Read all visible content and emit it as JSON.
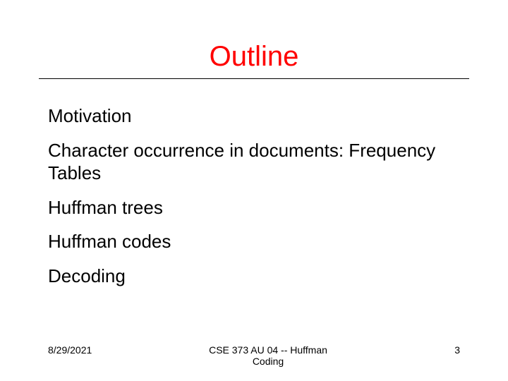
{
  "slide": {
    "title": "Outline",
    "title_color": "#ff0000",
    "title_fontsize": 40,
    "rule_color": "#000000",
    "background_color": "#ffffff",
    "bullets": [
      "Motivation",
      "Character occurrence in documents: Frequency Tables",
      "Huffman trees",
      "Huffman codes",
      "Decoding"
    ],
    "bullet_fontsize": 26,
    "bullet_color": "#000000"
  },
  "footer": {
    "date": "8/29/2021",
    "center_line1": "CSE 373 AU 04 -- Huffman",
    "center_line2": "Coding",
    "page_number": "3",
    "fontsize": 14,
    "color": "#000000"
  }
}
